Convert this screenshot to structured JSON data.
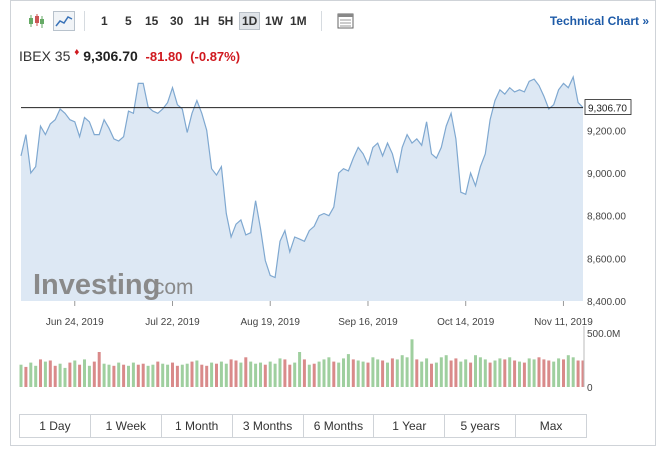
{
  "toolbar": {
    "intervals": [
      "1",
      "5",
      "15",
      "30",
      "1H",
      "5H",
      "1D",
      "1W",
      "1M"
    ],
    "selected_interval": "1D",
    "technical_chart_label": "Technical Chart »"
  },
  "quote": {
    "name": "IBEX 35",
    "price": "9,306.70",
    "change": "-81.80",
    "change_pct": "(-0.87%)"
  },
  "watermark": {
    "brand": "Investing",
    "suffix": ".com"
  },
  "range_buttons": [
    "1 Day",
    "1 Week",
    "1 Month",
    "3 Months",
    "6 Months",
    "1 Year",
    "5 years",
    "Max"
  ],
  "colors": {
    "line": "#7fa8d0",
    "area": "#dde8f4",
    "vol_up": "#9fcf9f",
    "vol_down": "#d98a8a",
    "negative": "#d0191f",
    "link": "#1e5ba8"
  },
  "chart_data": {
    "type": "area",
    "y_ticks": [
      "9,200.00",
      "9,000.00",
      "8,800.00",
      "8,600.00",
      "8,400.00"
    ],
    "y_tick_values": [
      9200,
      9000,
      8800,
      8600,
      8400
    ],
    "ylim": [
      8400,
      9450
    ],
    "x_tick_labels": [
      "Jun 24, 2019",
      "Jul 22, 2019",
      "Aug 19, 2019",
      "Sep 16, 2019",
      "Oct 14, 2019",
      "Nov 11, 2019"
    ],
    "x_tick_index": [
      11,
      31,
      51,
      71,
      91,
      111
    ],
    "last_price_label": "9,306.70",
    "last_price": 9306.7,
    "values": [
      9080,
      9180,
      9000,
      9030,
      9220,
      9180,
      9230,
      9250,
      9300,
      9280,
      9250,
      9240,
      9170,
      9260,
      9240,
      9180,
      9180,
      9250,
      9210,
      9160,
      9150,
      9170,
      9290,
      9280,
      9420,
      9420,
      9310,
      9290,
      9280,
      9300,
      9330,
      9400,
      9320,
      9300,
      9190,
      9280,
      9340,
      9280,
      9200,
      9020,
      8990,
      9030,
      8810,
      8700,
      8760,
      8780,
      8710,
      8720,
      8870,
      8740,
      8590,
      8520,
      8510,
      8680,
      8730,
      8630,
      8700,
      8690,
      8680,
      8730,
      8750,
      8800,
      8810,
      8800,
      8840,
      9000,
      9020,
      9010,
      9070,
      9120,
      9090,
      9040,
      9120,
      9140,
      9080,
      9140,
      9090,
      9000,
      9120,
      9180,
      9140,
      9160,
      9130,
      9240,
      9090,
      9070,
      9120,
      9220,
      9280,
      9160,
      8910,
      8900,
      9000,
      8940,
      9030,
      9090,
      9250,
      9340,
      9390,
      9370,
      9400,
      9380,
      9390,
      9380,
      9430,
      9440,
      9410,
      9360,
      9300,
      9320,
      9390,
      9420,
      9400,
      9450,
      9330,
      9306.7
    ],
    "volume_ticks": [
      "500.0M",
      "0"
    ],
    "volume_max": 500,
    "volume": [
      210,
      190,
      230,
      200,
      260,
      240,
      250,
      200,
      220,
      180,
      230,
      250,
      210,
      260,
      200,
      240,
      330,
      220,
      210,
      200,
      230,
      210,
      200,
      230,
      210,
      220,
      200,
      210,
      240,
      220,
      210,
      230,
      200,
      210,
      220,
      240,
      250,
      210,
      200,
      230,
      220,
      240,
      220,
      260,
      250,
      230,
      280,
      240,
      220,
      230,
      210,
      240,
      220,
      270,
      260,
      210,
      230,
      330,
      260,
      210,
      220,
      240,
      260,
      280,
      240,
      230,
      270,
      310,
      260,
      250,
      240,
      230,
      280,
      260,
      250,
      230,
      270,
      260,
      300,
      280,
      450,
      260,
      240,
      270,
      220,
      230,
      280,
      300,
      250,
      270,
      240,
      260,
      230,
      300,
      280,
      260,
      230,
      250,
      270,
      260,
      280,
      250,
      240,
      230,
      270,
      260,
      280,
      260,
      250,
      240,
      270,
      260,
      300,
      280,
      250,
      250
    ],
    "volume_up": [
      1,
      0,
      1,
      1,
      0,
      1,
      0,
      0,
      1,
      1,
      0,
      1,
      0,
      1,
      1,
      0,
      0,
      1,
      1,
      0,
      1,
      0,
      1,
      1,
      0,
      0,
      1,
      1,
      0,
      1,
      1,
      0,
      0,
      1,
      1,
      0,
      1,
      0,
      0,
      1,
      0,
      1,
      1,
      0,
      0,
      1,
      0,
      1,
      1,
      1,
      0,
      1,
      1,
      1,
      0,
      0,
      1,
      1,
      0,
      1,
      0,
      1,
      1,
      1,
      0,
      1,
      1,
      1,
      0,
      1,
      1,
      0,
      1,
      1,
      0,
      1,
      0,
      1,
      1,
      1,
      1,
      0,
      1,
      1,
      0,
      1,
      1,
      1,
      0,
      0,
      1,
      1,
      0,
      1,
      1,
      1,
      0,
      1,
      1,
      0,
      1,
      0,
      1,
      0,
      1,
      1,
      0,
      0,
      0,
      1,
      1,
      0,
      1,
      1,
      0,
      0
    ]
  }
}
